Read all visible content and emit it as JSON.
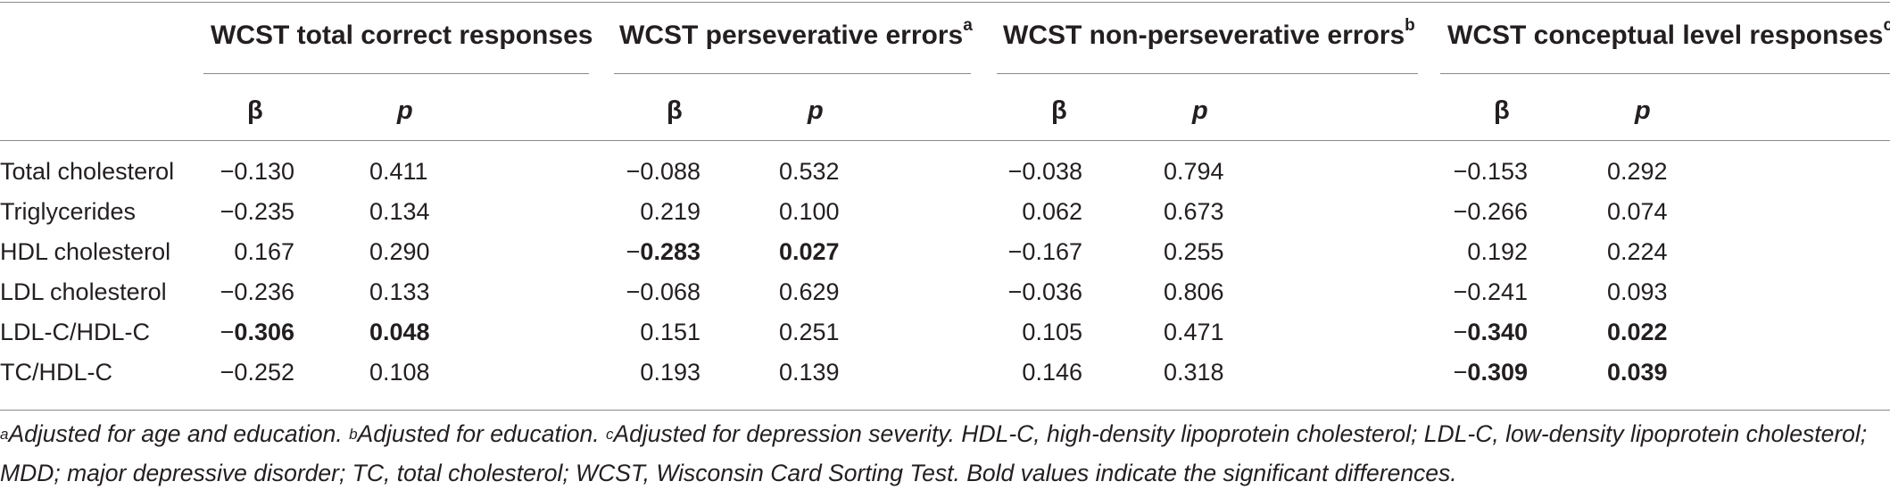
{
  "groups": [
    {
      "label": "WCST total correct responses",
      "sup": ""
    },
    {
      "label": "WCST perseverative errors",
      "sup": "a"
    },
    {
      "label": "WCST non-perseverative errors",
      "sup": "b"
    },
    {
      "label": "WCST conceptual level responses",
      "sup": "c"
    }
  ],
  "subheaders": {
    "beta": "β",
    "p": "p"
  },
  "rows": [
    {
      "label": "Total cholesterol",
      "cells": [
        {
          "b": "−0.130",
          "p": "0.411",
          "bold": false
        },
        {
          "b": "−0.088",
          "p": "0.532",
          "bold": false
        },
        {
          "b": "−0.038",
          "p": "0.794",
          "bold": false
        },
        {
          "b": "−0.153",
          "p": "0.292",
          "bold": false
        }
      ]
    },
    {
      "label": "Triglycerides",
      "cells": [
        {
          "b": "−0.235",
          "p": "0.134",
          "bold": false
        },
        {
          "b": "0.219",
          "p": "0.100",
          "bold": false
        },
        {
          "b": "0.062",
          "p": "0.673",
          "bold": false
        },
        {
          "b": "−0.266",
          "p": "0.074",
          "bold": false
        }
      ]
    },
    {
      "label": "HDL cholesterol",
      "cells": [
        {
          "b": "0.167",
          "p": "0.290",
          "bold": false
        },
        {
          "b": "−0.283",
          "p": "0.027",
          "bold": true
        },
        {
          "b": "−0.167",
          "p": "0.255",
          "bold": false
        },
        {
          "b": "0.192",
          "p": "0.224",
          "bold": false
        }
      ]
    },
    {
      "label": "LDL cholesterol",
      "cells": [
        {
          "b": "−0.236",
          "p": "0.133",
          "bold": false
        },
        {
          "b": "−0.068",
          "p": "0.629",
          "bold": false
        },
        {
          "b": "−0.036",
          "p": "0.806",
          "bold": false
        },
        {
          "b": "−0.241",
          "p": "0.093",
          "bold": false
        }
      ]
    },
    {
      "label": "LDL-C/HDL-C",
      "cells": [
        {
          "b": "−0.306",
          "p": "0.048",
          "bold": true
        },
        {
          "b": "0.151",
          "p": "0.251",
          "bold": false
        },
        {
          "b": "0.105",
          "p": "0.471",
          "bold": false
        },
        {
          "b": "−0.340",
          "p": "0.022",
          "bold": true
        }
      ]
    },
    {
      "label": "TC/HDL-C",
      "cells": [
        {
          "b": "−0.252",
          "p": "0.108",
          "bold": false
        },
        {
          "b": "0.193",
          "p": "0.139",
          "bold": false
        },
        {
          "b": "0.146",
          "p": "0.318",
          "bold": false
        },
        {
          "b": "−0.309",
          "p": "0.039",
          "bold": true
        }
      ]
    }
  ],
  "footnote": {
    "a_mark": "a",
    "a_text": "Adjusted for age and education. ",
    "b_mark": "b",
    "b_text": "Adjusted for education. ",
    "c_mark": "c",
    "c_text": "Adjusted for depression severity. HDL-C, high-density lipoprotein cholesterol; LDL-C, low-density lipoprotein cholesterol; MDD; major depressive disorder; TC, total cholesterol; WCST, Wisconsin Card Sorting Test. Bold values indicate the significant differences."
  }
}
